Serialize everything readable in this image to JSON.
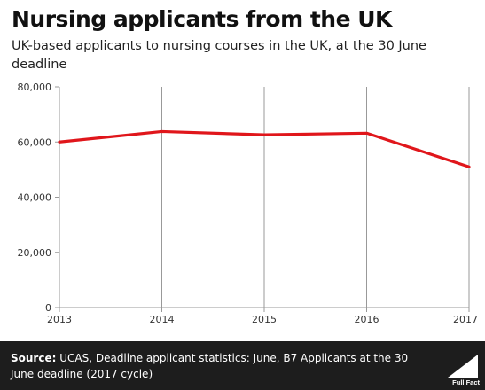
{
  "title": "Nursing applicants from the UK",
  "subtitle": "UK-based applicants to nursing courses in the UK, at the 30 June deadline",
  "footer": {
    "source_label": "Source:",
    "source_text": " UCAS, Deadline applicant statistics: June, B7 Applicants at the 30 June deadline (2017 cycle)",
    "logo_text": "Full Fact"
  },
  "colors": {
    "line": "#e0161b",
    "footer_bg": "#1d1d1d"
  },
  "chart_data": {
    "type": "line",
    "x": [
      "2013",
      "2014",
      "2015",
      "2016",
      "2017"
    ],
    "series": [
      {
        "values": [
          60000,
          63800,
          62600,
          63200,
          51000
        ]
      }
    ],
    "ylim": [
      0,
      80000
    ],
    "yticks": [
      "0",
      "20,000",
      "40,000",
      "60,000",
      "80,000"
    ],
    "ytick_values": [
      0,
      20000,
      40000,
      60000,
      80000
    ],
    "grid": false
  }
}
